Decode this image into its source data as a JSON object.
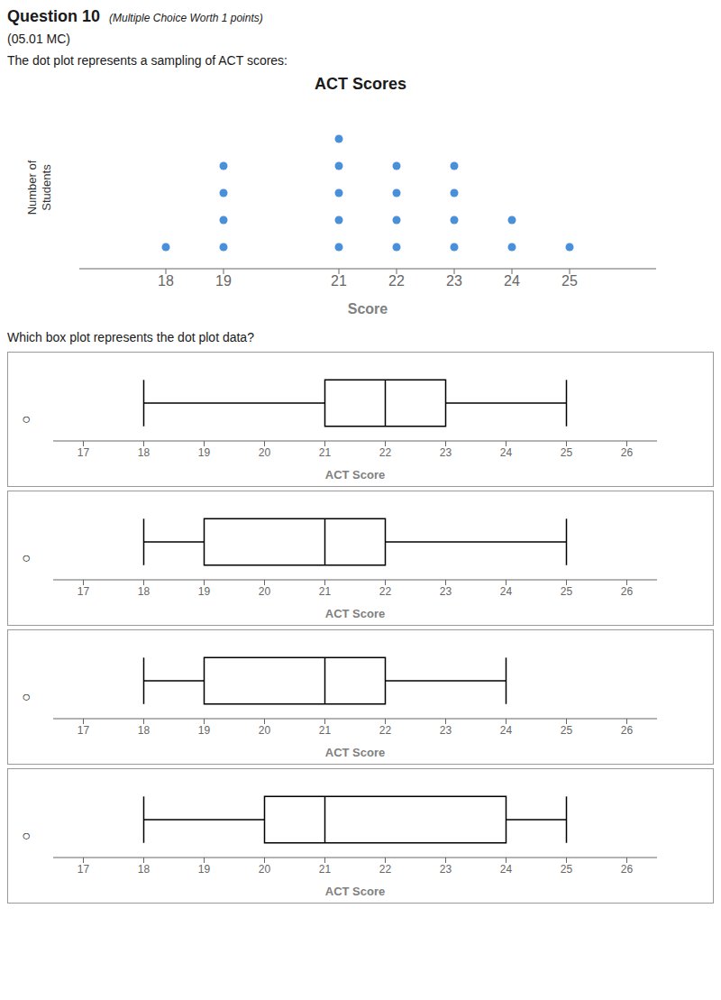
{
  "chart_data": [
    {
      "type": "dot",
      "title": "ACT Scores",
      "annotations": [
        "Question 10",
        "(Multiple Choice Worth 1 points)",
        "(05.01 MC)",
        "The dot plot represents a sampling of ACT scores:"
      ],
      "x": [
        18,
        19,
        21,
        22,
        23,
        24,
        25
      ],
      "values": [
        1,
        4,
        5,
        4,
        4,
        2,
        1
      ],
      "color": "#4a90d9",
      "xlabel": "Score",
      "ylabel": "Number of\nStudents",
      "xlim": [
        16.5,
        26.5
      ],
      "xticks": [
        18,
        19,
        21,
        22,
        23,
        24,
        25
      ],
      "ylim": [
        0.2,
        6.2
      ],
      "tick_labels": "x"
    },
    {
      "type": "box",
      "annotations": [
        "Which box plot represents the dot plot data?",
        "○"
      ],
      "min": 18,
      "q1": 21,
      "median": 22,
      "q3": 23,
      "max": 25,
      "color": "#000000",
      "xlabel": "ACT Score",
      "xlim": [
        16.5,
        26.5
      ],
      "xticks": [
        17,
        18,
        19,
        20,
        21,
        22,
        23,
        24,
        25,
        26
      ],
      "tick_labels": "x"
    },
    {
      "type": "box",
      "annotations": [
        "○"
      ],
      "min": 18,
      "q1": 19,
      "median": 21,
      "q3": 22,
      "max": 25,
      "color": "#000000",
      "xlabel": "ACT Score",
      "xlim": [
        16.5,
        26.5
      ],
      "xticks": [
        17,
        18,
        19,
        20,
        21,
        22,
        23,
        24,
        25,
        26
      ],
      "tick_labels": "x"
    },
    {
      "type": "box",
      "annotations": [
        "○"
      ],
      "min": 18,
      "q1": 19,
      "median": 21,
      "q3": 22,
      "max": 24,
      "color": "#000000",
      "xlabel": "ACT Score",
      "xlim": [
        16.5,
        26.5
      ],
      "xticks": [
        17,
        18,
        19,
        20,
        21,
        22,
        23,
        24,
        25,
        26
      ],
      "tick_labels": "x"
    },
    {
      "type": "box",
      "annotations": [
        "○"
      ],
      "min": 18,
      "q1": 20,
      "median": 21,
      "q3": 24,
      "max": 25,
      "color": "#000000",
      "xlabel": "ACT Score",
      "xlim": [
        16.5,
        26.5
      ],
      "xticks": [
        17,
        18,
        19,
        20,
        21,
        22,
        23,
        24,
        25,
        26
      ],
      "tick_labels": "x"
    }
  ]
}
